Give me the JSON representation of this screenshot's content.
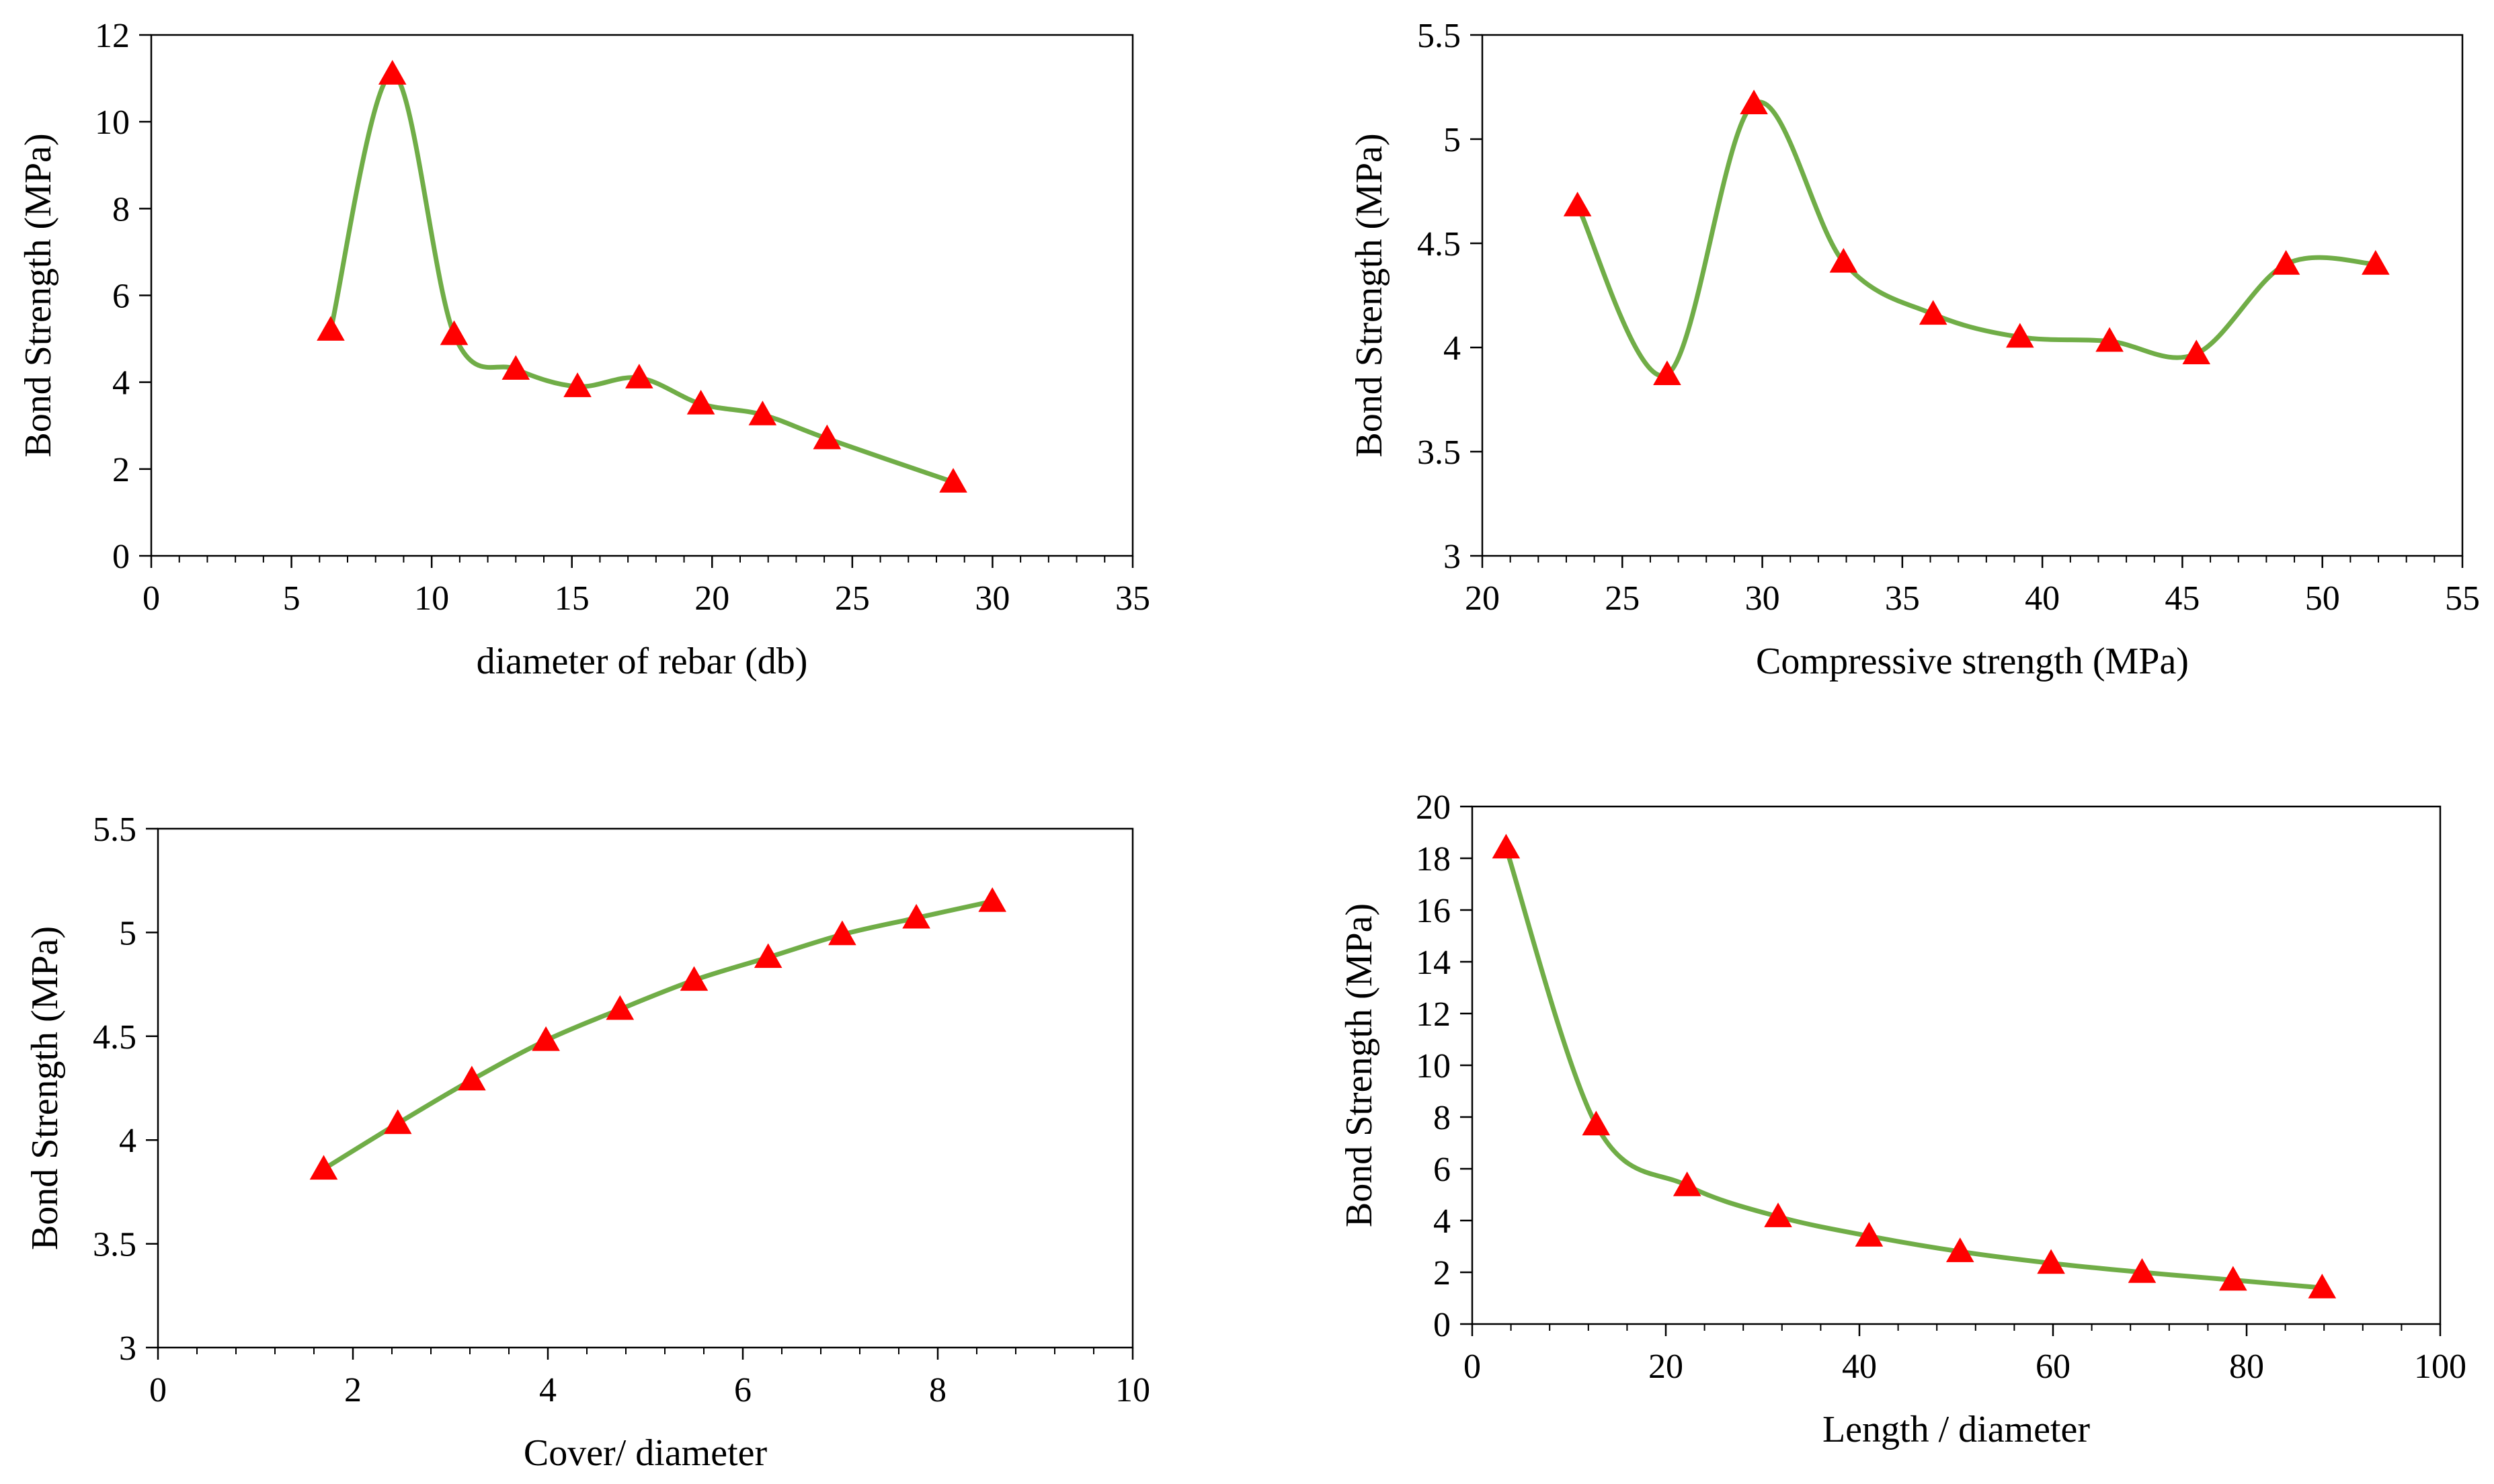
{
  "colors": {
    "line": "#70AD47",
    "marker": "#FF0000",
    "axis": "#000000",
    "background": "#FFFFFF"
  },
  "marker_shape": "triangle",
  "chart_data": [
    {
      "type": "scatter",
      "title": "",
      "xlabel": "diameter of rebar (db)",
      "ylabel": "Bond Strength (MPa)",
      "xlim": [
        0,
        35
      ],
      "ylim": [
        0,
        12
      ],
      "xticks": [
        "0",
        "5",
        "10",
        "15",
        "20",
        "25",
        "30",
        "35"
      ],
      "yticks": [
        "0",
        "2",
        "4",
        "6",
        "8",
        "10",
        "12"
      ],
      "grid": false,
      "line": "smoothed",
      "x": [
        6.4,
        8.6,
        10.8,
        13,
        15.2,
        17.4,
        19.6,
        21.8,
        24.1,
        28.6
      ],
      "y": [
        5.2,
        11.1,
        5.1,
        4.3,
        3.9,
        4.1,
        3.5,
        3.25,
        2.7,
        1.7
      ]
    },
    {
      "type": "scatter",
      "title": "",
      "xlabel": "Compressive strength (MPa)",
      "ylabel": "Bond Strength (MPa)",
      "xlim": [
        20,
        55
      ],
      "ylim": [
        3,
        5.5
      ],
      "xticks": [
        "20",
        "25",
        "30",
        "35",
        "40",
        "45",
        "50",
        "55"
      ],
      "yticks": [
        "3",
        "3.5",
        "4",
        "4.5",
        "5",
        "5.5"
      ],
      "grid": false,
      "line": "smoothed",
      "x": [
        23.4,
        26.6,
        29.7,
        32.9,
        36.1,
        39.2,
        42.4,
        45.5,
        48.7,
        51.9
      ],
      "y": [
        4.68,
        3.87,
        5.17,
        4.41,
        4.16,
        4.05,
        4.03,
        3.97,
        4.4,
        4.4
      ]
    },
    {
      "type": "scatter",
      "title": "",
      "xlabel": "Cover/ diameter",
      "ylabel": "Bond Strength (MPa)",
      "xlim": [
        0,
        10
      ],
      "ylim": [
        3,
        5.5
      ],
      "xticks": [
        "0",
        "2",
        "4",
        "6",
        "8",
        "10"
      ],
      "yticks": [
        "3",
        "3.5",
        "4",
        "4.5",
        "5",
        "5.5"
      ],
      "grid": false,
      "line": "smoothed",
      "x": [
        1.7,
        2.46,
        3.22,
        3.98,
        4.74,
        5.5,
        6.26,
        7.02,
        7.78,
        8.56
      ],
      "y": [
        3.86,
        4.08,
        4.29,
        4.48,
        4.63,
        4.77,
        4.88,
        4.99,
        5.07,
        5.15
      ]
    },
    {
      "type": "scatter",
      "title": "",
      "xlabel": "Length / diameter",
      "ylabel": "Bond Strength (MPa)",
      "xlim": [
        0,
        100
      ],
      "ylim": [
        0,
        20
      ],
      "xticks": [
        "0",
        "20",
        "40",
        "60",
        "80",
        "100"
      ],
      "yticks": [
        "0",
        "2",
        "4",
        "6",
        "8",
        "10",
        "12",
        "14",
        "16",
        "18",
        "20"
      ],
      "grid": false,
      "line": "smoothed",
      "x": [
        3.5,
        12.8,
        22.2,
        31.6,
        41,
        50.4,
        59.8,
        69.2,
        78.6,
        87.8
      ],
      "y": [
        18.4,
        7.7,
        5.35,
        4.15,
        3.4,
        2.8,
        2.35,
        2.0,
        1.7,
        1.4
      ]
    }
  ]
}
